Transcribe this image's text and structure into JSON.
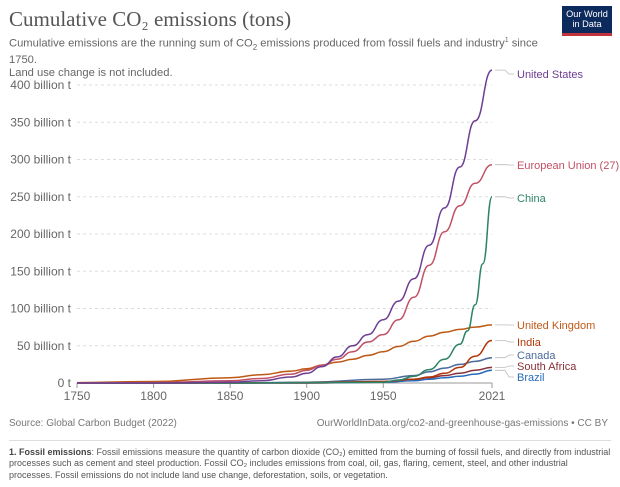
{
  "header": {
    "title": "Cumulative CO₂ emissions (tons)",
    "subtitle_line1_a": "Cumulative emissions are the running sum of CO",
    "subtitle_sub": "2",
    "subtitle_line1_b": " emissions produced from fossil fuels and industry",
    "subtitle_sup": "1",
    "subtitle_line1_c": " since 1750.",
    "subtitle_line2": "Land use change is not included."
  },
  "logo": {
    "line1": "Our World",
    "line2": "in Data",
    "bg_color": "#0d2a5c",
    "accent_color": "#c2343b"
  },
  "footer": {
    "source": "Source: Global Carbon Budget (2022)",
    "url": "OurWorldInData.org/co2-and-greenhouse-gas-emissions • CC BY",
    "footnote_label": "1. Fossil emissions",
    "footnote_text": ": Fossil emissions measure the quantity of carbon dioxide (CO₂) emitted from the burning of fossil fuels, and directly from industrial processes such as cement and steel production. Fossil CO₂ includes emissions from coal, oil, gas, flaring, cement, steel, and other industrial processes. Fossil emissions do not include land use change, deforestation, soils, or vegetation."
  },
  "chart_data": {
    "type": "line",
    "y_ticks": [
      {
        "value": 0,
        "label": "0 t"
      },
      {
        "value": 50,
        "label": "50 billion t"
      },
      {
        "value": 100,
        "label": "100 billion t"
      },
      {
        "value": 150,
        "label": "150 billion t"
      },
      {
        "value": 200,
        "label": "200 billion t"
      },
      {
        "value": 250,
        "label": "250 billion t"
      },
      {
        "value": 300,
        "label": "300 billion t"
      },
      {
        "value": 350,
        "label": "350 billion t"
      },
      {
        "value": 400,
        "label": "400 billion t"
      }
    ],
    "x_ticks": [
      {
        "value": 1750,
        "label": "1750"
      },
      {
        "value": 1800,
        "label": "1800"
      },
      {
        "value": 1850,
        "label": "1850"
      },
      {
        "value": 1900,
        "label": "1900"
      },
      {
        "value": 1950,
        "label": "1950"
      },
      {
        "value": 2021,
        "label": "2021"
      }
    ],
    "xlim": [
      1750,
      2021
    ],
    "ylim": [
      0,
      420
    ],
    "y_unit": "billion t",
    "grid": "horizontal dashed",
    "series": [
      {
        "name": "United States",
        "color": "#6d3e91",
        "x": [
          1750,
          1800,
          1850,
          1870,
          1890,
          1900,
          1910,
          1920,
          1930,
          1940,
          1950,
          1960,
          1970,
          1980,
          1990,
          2000,
          2010,
          2021
        ],
        "y": [
          0,
          0,
          1,
          3,
          8,
          13,
          22,
          35,
          50,
          65,
          85,
          110,
          140,
          185,
          235,
          290,
          352,
          420
        ]
      },
      {
        "name": "European Union (27)",
        "color": "#c15065",
        "x": [
          1750,
          1800,
          1850,
          1870,
          1890,
          1900,
          1910,
          1920,
          1930,
          1940,
          1950,
          1960,
          1970,
          1980,
          1990,
          2000,
          2010,
          2021
        ],
        "y": [
          0,
          0.5,
          3,
          6,
          12,
          17,
          24,
          32,
          42,
          55,
          65,
          85,
          115,
          158,
          203,
          238,
          268,
          293
        ]
      },
      {
        "name": "China",
        "color": "#2c8465",
        "x": [
          1750,
          1800,
          1850,
          1900,
          1950,
          1960,
          1970,
          1980,
          1990,
          2000,
          2005,
          2010,
          2015,
          2021
        ],
        "y": [
          0,
          0,
          0,
          0.5,
          1,
          4,
          9,
          18,
          32,
          52,
          70,
          105,
          160,
          250
        ]
      },
      {
        "name": "United Kingdom",
        "color": "#be5915",
        "x": [
          1750,
          1800,
          1850,
          1870,
          1890,
          1900,
          1910,
          1920,
          1930,
          1940,
          1950,
          1960,
          1970,
          1980,
          1990,
          2000,
          2010,
          2021
        ],
        "y": [
          0.5,
          2,
          7,
          11,
          16,
          19,
          24,
          28,
          32,
          37,
          42,
          49,
          56,
          63,
          68,
          72,
          75,
          78
        ]
      },
      {
        "name": "India",
        "color": "#b13507",
        "x": [
          1750,
          1850,
          1900,
          1950,
          1970,
          1980,
          1990,
          2000,
          2010,
          2021
        ],
        "y": [
          0,
          0,
          0.5,
          2,
          5,
          8,
          13,
          21,
          36,
          57
        ]
      },
      {
        "name": "Canada",
        "color": "#4c6a9c",
        "x": [
          1750,
          1850,
          1900,
          1950,
          1970,
          1980,
          1990,
          2000,
          2010,
          2021
        ],
        "y": [
          0,
          0,
          1,
          5,
          10,
          15,
          20,
          25,
          29,
          34
        ]
      },
      {
        "name": "South Africa",
        "color": "#883039",
        "x": [
          1750,
          1850,
          1900,
          1950,
          1970,
          1980,
          1990,
          2000,
          2010,
          2021
        ],
        "y": [
          0,
          0,
          0,
          2,
          5,
          7,
          10,
          13,
          17,
          21
        ]
      },
      {
        "name": "Brazil",
        "color": "#286bbb",
        "x": [
          1750,
          1850,
          1900,
          1950,
          1970,
          1980,
          1990,
          2000,
          2010,
          2021
        ],
        "y": [
          0,
          0,
          0,
          1,
          3,
          5,
          7,
          9,
          12,
          17
        ]
      }
    ],
    "labels": [
      {
        "series": "United States",
        "text": "United States",
        "color": "#6d3e91"
      },
      {
        "series": "European Union (27)",
        "text": "European Union (27)",
        "color": "#c15065"
      },
      {
        "series": "China",
        "text": "China",
        "color": "#2c8465"
      },
      {
        "series": "United Kingdom",
        "text": "United Kingdom",
        "color": "#be5915"
      },
      {
        "series": "India",
        "text": "India",
        "color": "#b13507"
      },
      {
        "series": "Canada",
        "text": "Canada",
        "color": "#4c6a9c"
      },
      {
        "series": "South Africa",
        "text": "South Africa",
        "color": "#883039"
      },
      {
        "series": "Brazil",
        "text": "Brazil",
        "color": "#286bbb"
      }
    ]
  }
}
